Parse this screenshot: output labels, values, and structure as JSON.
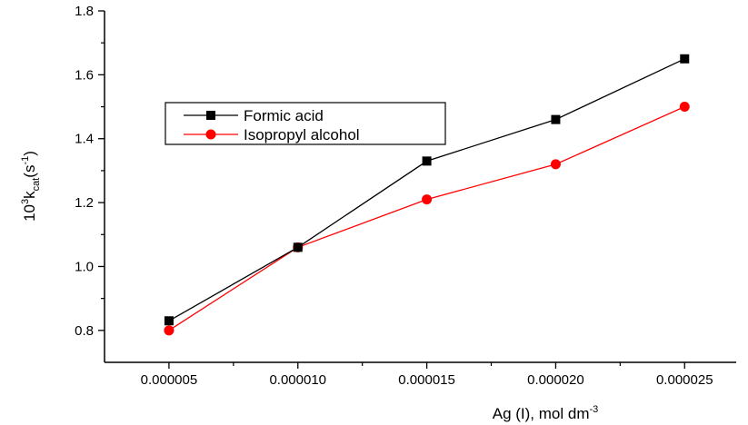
{
  "chart_data": {
    "type": "line",
    "x": [
      5e-06,
      1e-05,
      1.5e-05,
      2e-05,
      2.5e-05
    ],
    "x_tick_labels": [
      "0.000005",
      "0.000010",
      "0.000015",
      "0.000020",
      "0.000025"
    ],
    "y_tick_labels": [
      "0.8",
      "1.0",
      "1.2",
      "1.4",
      "1.6",
      "1.8"
    ],
    "y_ticks": [
      0.8,
      1.0,
      1.2,
      1.4,
      1.6,
      1.8
    ],
    "xlim": [
      2.5e-06,
      2.7e-05
    ],
    "ylim": [
      0.7,
      1.8
    ],
    "xlabel": {
      "main": "Ag (I), mol dm",
      "sup": "-3"
    },
    "ylabel": {
      "pre": "10",
      "sup": "3",
      "mid": "k",
      "sub": "cat",
      "post": "(s",
      "sup2": "-1",
      "end": ")"
    },
    "grid": false,
    "legend_position": "upper-left",
    "series": [
      {
        "name": "Formic acid",
        "marker": "square",
        "color": "#000000",
        "line_color": "#000000",
        "values": [
          0.83,
          1.06,
          1.33,
          1.46,
          1.65
        ]
      },
      {
        "name": "Isopropyl alcohol",
        "marker": "circle",
        "color": "#ff0000",
        "line_color": "#ff0000",
        "values": [
          0.8,
          1.06,
          1.21,
          1.32,
          1.5
        ]
      }
    ]
  }
}
